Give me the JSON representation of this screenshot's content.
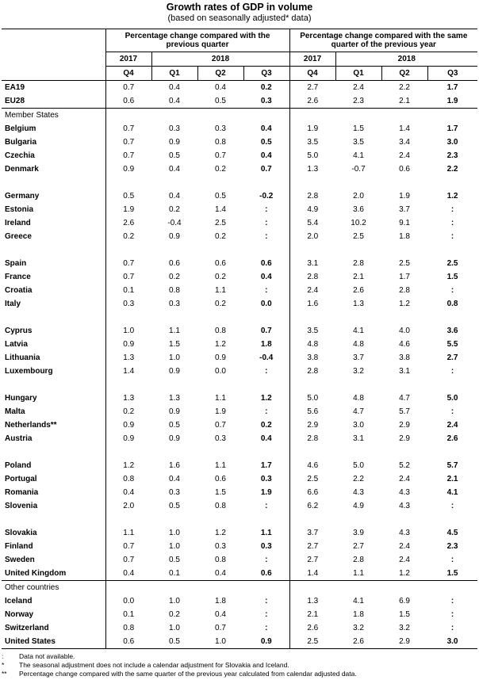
{
  "title": "Growth rates of GDP in volume",
  "subtitle": "(based on seasonally adjusted* data)",
  "header": {
    "group_qoq": "Percentage change compared with the previous quarter",
    "group_yoy": "Percentage change compared with the same quarter of the previous year",
    "year_2017": "2017",
    "year_2018": "2018",
    "quarters": [
      "Q4",
      "Q1",
      "Q2",
      "Q3",
      "Q4",
      "Q1",
      "Q2",
      "Q3"
    ]
  },
  "sections": {
    "member_states": "Member States",
    "other_countries": "Other countries"
  },
  "rows": {
    "aggregates": [
      [
        "EA19",
        "0.7",
        "0.4",
        "0.4",
        "0.2",
        "2.7",
        "2.4",
        "2.2",
        "1.7"
      ],
      [
        "EU28",
        "0.6",
        "0.4",
        "0.5",
        "0.3",
        "2.6",
        "2.3",
        "2.1",
        "1.9"
      ]
    ],
    "member_groups": [
      [
        [
          "Belgium",
          "0.7",
          "0.3",
          "0.3",
          "0.4",
          "1.9",
          "1.5",
          "1.4",
          "1.7"
        ],
        [
          "Bulgaria",
          "0.7",
          "0.9",
          "0.8",
          "0.5",
          "3.5",
          "3.5",
          "3.4",
          "3.0"
        ],
        [
          "Czechia",
          "0.7",
          "0.5",
          "0.7",
          "0.4",
          "5.0",
          "4.1",
          "2.4",
          "2.3"
        ],
        [
          "Denmark",
          "0.9",
          "0.4",
          "0.2",
          "0.7",
          "1.3",
          "-0.7",
          "0.6",
          "2.2"
        ]
      ],
      [
        [
          "Germany",
          "0.5",
          "0.4",
          "0.5",
          "-0.2",
          "2.8",
          "2.0",
          "1.9",
          "1.2"
        ],
        [
          "Estonia",
          "1.9",
          "0.2",
          "1.4",
          ":",
          "4.9",
          "3.6",
          "3.7",
          ":"
        ],
        [
          "Ireland",
          "2.6",
          "-0.4",
          "2.5",
          ":",
          "5.4",
          "10.2",
          "9.1",
          ":"
        ],
        [
          "Greece",
          "0.2",
          "0.9",
          "0.2",
          ":",
          "2.0",
          "2.5",
          "1.8",
          ":"
        ]
      ],
      [
        [
          "Spain",
          "0.7",
          "0.6",
          "0.6",
          "0.6",
          "3.1",
          "2.8",
          "2.5",
          "2.5"
        ],
        [
          "France",
          "0.7",
          "0.2",
          "0.2",
          "0.4",
          "2.8",
          "2.1",
          "1.7",
          "1.5"
        ],
        [
          "Croatia",
          "0.1",
          "0.8",
          "1.1",
          ":",
          "2.4",
          "2.6",
          "2.8",
          ":"
        ],
        [
          "Italy",
          "0.3",
          "0.3",
          "0.2",
          "0.0",
          "1.6",
          "1.3",
          "1.2",
          "0.8"
        ]
      ],
      [
        [
          "Cyprus",
          "1.0",
          "1.1",
          "0.8",
          "0.7",
          "3.5",
          "4.1",
          "4.0",
          "3.6"
        ],
        [
          "Latvia",
          "0.9",
          "1.5",
          "1.2",
          "1.8",
          "4.8",
          "4.8",
          "4.6",
          "5.5"
        ],
        [
          "Lithuania",
          "1.3",
          "1.0",
          "0.9",
          "-0.4",
          "3.8",
          "3.7",
          "3.8",
          "2.7"
        ],
        [
          "Luxembourg",
          "1.4",
          "0.9",
          "0.0",
          ":",
          "2.8",
          "3.2",
          "3.1",
          ":"
        ]
      ],
      [
        [
          "Hungary",
          "1.3",
          "1.3",
          "1.1",
          "1.2",
          "5.0",
          "4.8",
          "4.7",
          "5.0"
        ],
        [
          "Malta",
          "0.2",
          "0.9",
          "1.9",
          ":",
          "5.6",
          "4.7",
          "5.7",
          ":"
        ],
        [
          "Netherlands**",
          "0.9",
          "0.5",
          "0.7",
          "0.2",
          "2.9",
          "3.0",
          "2.9",
          "2.4"
        ],
        [
          "Austria",
          "0.9",
          "0.9",
          "0.3",
          "0.4",
          "2.8",
          "3.1",
          "2.9",
          "2.6"
        ]
      ],
      [
        [
          "Poland",
          "1.2",
          "1.6",
          "1.1",
          "1.7",
          "4.6",
          "5.0",
          "5.2",
          "5.7"
        ],
        [
          "Portugal",
          "0.8",
          "0.4",
          "0.6",
          "0.3",
          "2.5",
          "2.2",
          "2.4",
          "2.1"
        ],
        [
          "Romania",
          "0.4",
          "0.3",
          "1.5",
          "1.9",
          "6.6",
          "4.3",
          "4.3",
          "4.1"
        ],
        [
          "Slovenia",
          "2.0",
          "0.5",
          "0.8",
          ":",
          "6.2",
          "4.9",
          "4.3",
          ":"
        ]
      ],
      [
        [
          "Slovakia",
          "1.1",
          "1.0",
          "1.2",
          "1.1",
          "3.7",
          "3.9",
          "4.3",
          "4.5"
        ],
        [
          "Finland",
          "0.7",
          "1.0",
          "0.3",
          "0.3",
          "2.7",
          "2.7",
          "2.4",
          "2.3"
        ],
        [
          "Sweden",
          "0.7",
          "0.5",
          "0.8",
          ":",
          "2.7",
          "2.8",
          "2.4",
          ":"
        ],
        [
          "United Kingdom",
          "0.4",
          "0.1",
          "0.4",
          "0.6",
          "1.4",
          "1.1",
          "1.2",
          "1.5"
        ]
      ]
    ],
    "other": [
      [
        "Iceland",
        "0.0",
        "1.0",
        "1.8",
        ":",
        "1.3",
        "4.1",
        "6.9",
        ":"
      ],
      [
        "Norway",
        "0.1",
        "0.2",
        "0.4",
        ":",
        "2.1",
        "1.8",
        "1.5",
        ":"
      ],
      [
        "Switzerland",
        "0.8",
        "1.0",
        "0.7",
        ":",
        "2.6",
        "3.2",
        "3.2",
        ":"
      ],
      [
        "United States",
        "0.6",
        "0.5",
        "1.0",
        "0.9",
        "2.5",
        "2.6",
        "2.9",
        "3.0"
      ]
    ]
  },
  "footnotes": [
    {
      "symbol": ":",
      "text": "Data not available."
    },
    {
      "symbol": "*",
      "text": "The seasonal adjustment does not include a calendar adjustment for Slovakia and Iceland."
    },
    {
      "symbol": "**",
      "text": "Percentage change compared with the same quarter of the previous year calculated from calendar adjusted data."
    }
  ]
}
